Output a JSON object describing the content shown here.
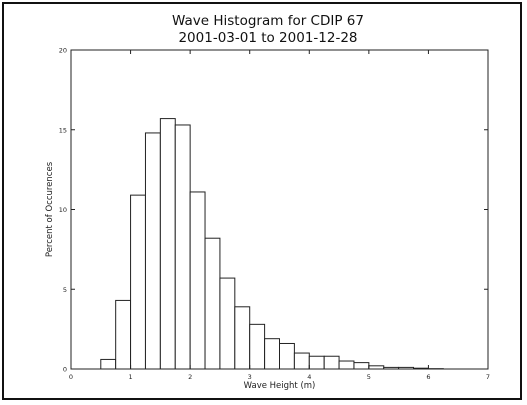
{
  "chart_data": {
    "type": "bar",
    "title_lines": [
      "Wave Histogram for CDIP 67",
      "2001-03-01 to 2001-12-28"
    ],
    "xlabel": "Wave Height (m)",
    "ylabel": "Percent of Occurences",
    "xlim": [
      0,
      7
    ],
    "ylim": [
      0,
      20
    ],
    "xticks": [
      0,
      1,
      2,
      3,
      4,
      5,
      6,
      7
    ],
    "yticks": [
      0,
      5,
      10,
      15,
      20
    ],
    "bin_width": 0.25,
    "bin_starts": [
      0.5,
      0.75,
      1.0,
      1.25,
      1.5,
      1.75,
      2.0,
      2.25,
      2.5,
      2.75,
      3.0,
      3.25,
      3.5,
      3.75,
      4.0,
      4.25,
      4.5,
      4.75,
      5.0,
      5.25,
      5.5,
      5.75,
      6.0
    ],
    "values": [
      0.6,
      4.3,
      10.9,
      14.8,
      15.7,
      15.3,
      11.1,
      8.2,
      5.7,
      3.9,
      2.8,
      1.9,
      1.6,
      1.0,
      0.8,
      0.8,
      0.5,
      0.4,
      0.2,
      0.1,
      0.1,
      0.05,
      0.02
    ],
    "grid": false,
    "legend": "none"
  }
}
